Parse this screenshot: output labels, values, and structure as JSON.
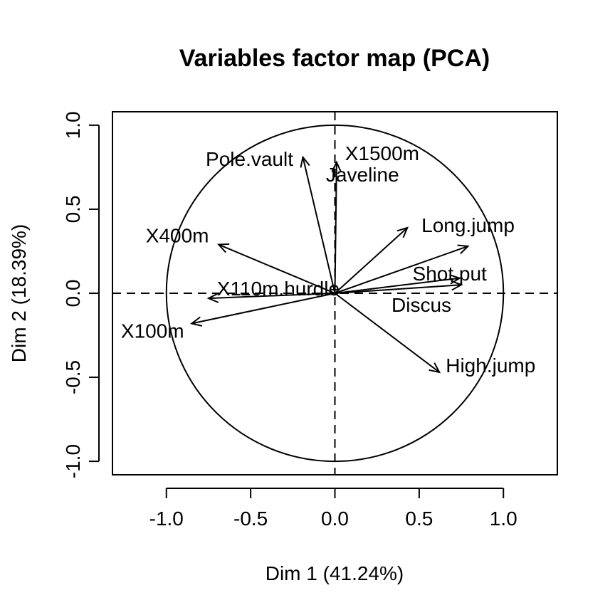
{
  "chart_data": {
    "type": "scatter",
    "title": "Variables factor map (PCA)",
    "xlabel": "Dim 1 (41.24%)",
    "ylabel": "Dim 2 (18.39%)",
    "xlim": [
      -1.32,
      1.32
    ],
    "ylim": [
      -1.08,
      1.08
    ],
    "xticks": [
      -1.0,
      -0.5,
      0.0,
      0.5,
      1.0
    ],
    "yticks": [
      -1.0,
      -0.5,
      0.0,
      0.5,
      1.0
    ],
    "xtick_labels": [
      "-1.0",
      "-0.5",
      "0.0",
      "0.5",
      "1.0"
    ],
    "ytick_labels": [
      "-1.0",
      "-0.5",
      "0.0",
      "0.5",
      "1.0"
    ],
    "reference_lines": {
      "x": 0,
      "y": 0,
      "style": "dashed"
    },
    "unit_circle": true,
    "grid": false,
    "legend": "none",
    "variables": [
      {
        "name": "X100m",
        "x": -0.85,
        "y": -0.18
      },
      {
        "name": "Long.jump",
        "x": 0.79,
        "y": 0.28
      },
      {
        "name": "Shot.put",
        "x": 0.74,
        "y": 0.09
      },
      {
        "name": "High.jump",
        "x": 0.62,
        "y": -0.47
      },
      {
        "name": "X400m",
        "x": -0.69,
        "y": 0.29
      },
      {
        "name": "X110m.hurdle",
        "x": -0.75,
        "y": -0.03
      },
      {
        "name": "Discus",
        "x": 0.75,
        "y": 0.05
      },
      {
        "name": "Pole.vault",
        "x": -0.19,
        "y": 0.81
      },
      {
        "name": "Javeline",
        "x": 0.43,
        "y": 0.39
      },
      {
        "name": "X1500m",
        "x": 0.01,
        "y": 0.78
      }
    ]
  }
}
